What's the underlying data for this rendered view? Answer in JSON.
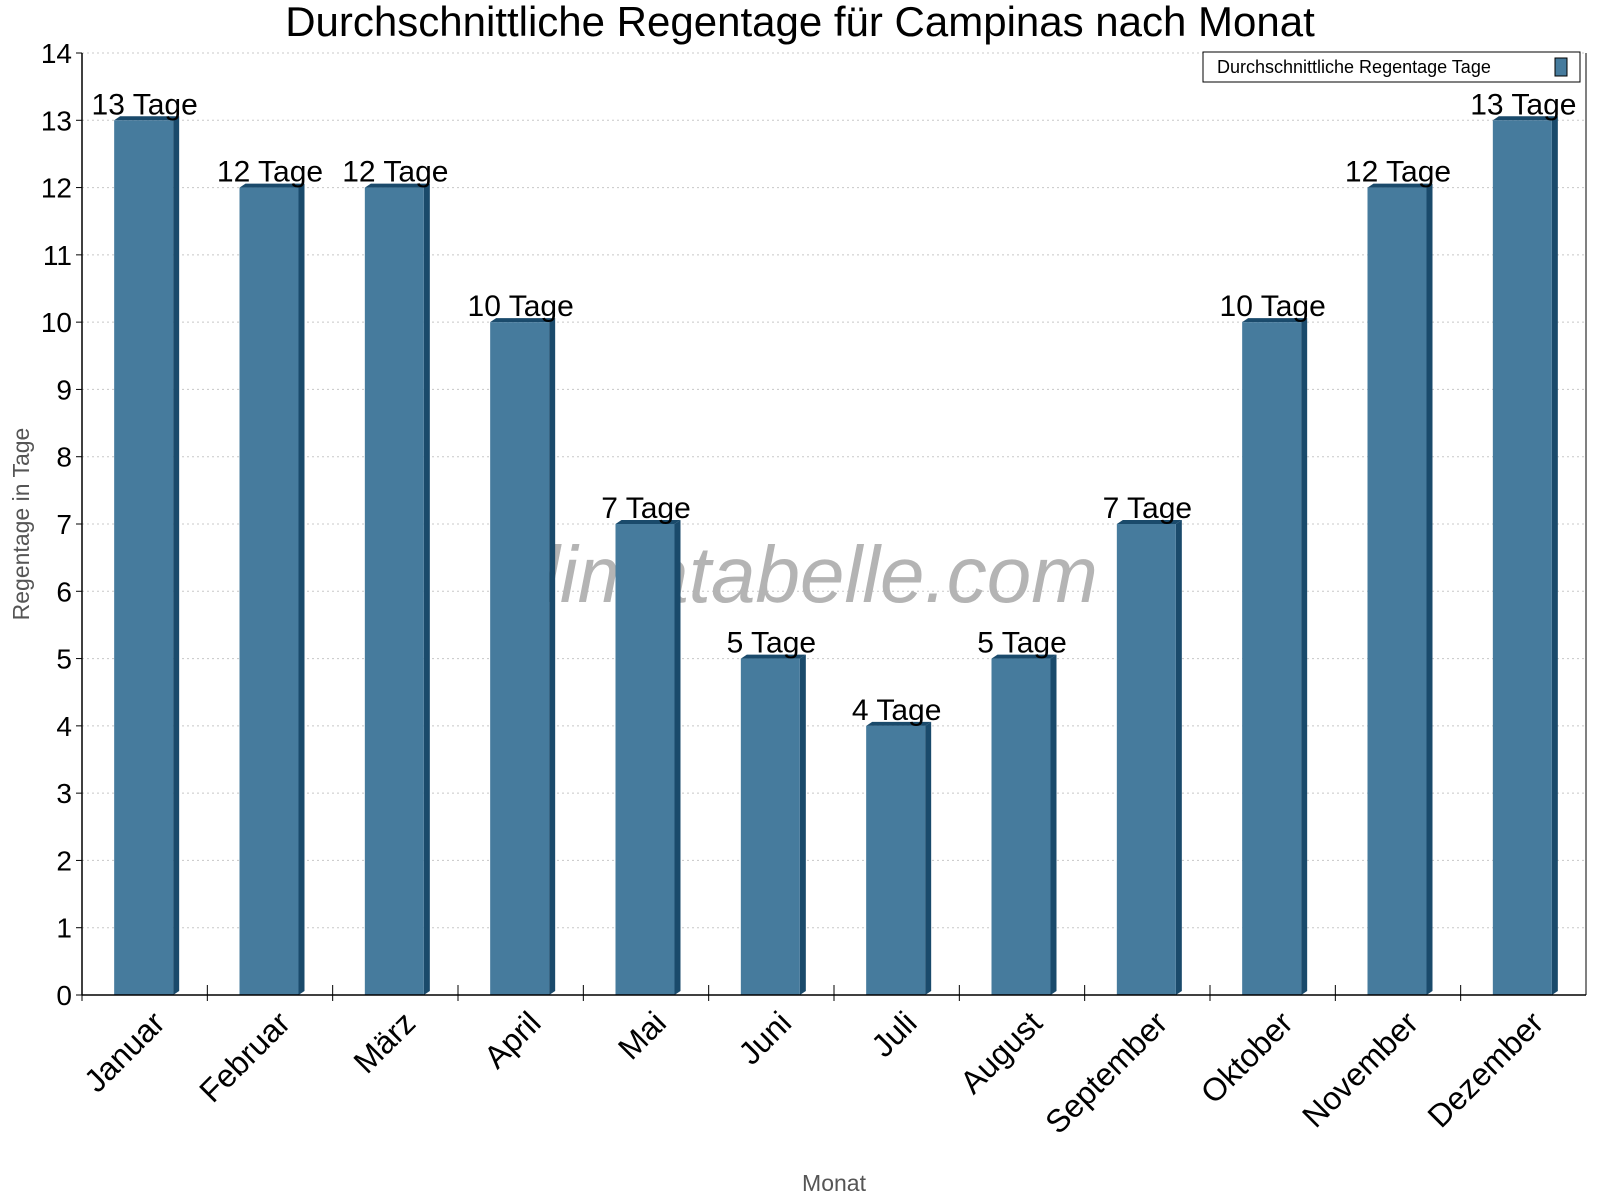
{
  "chart_data": {
    "type": "bar",
    "title": "Durchschnittliche Regentage für Campinas nach Monat",
    "xlabel": "Monat",
    "ylabel": "Regentage in Tage",
    "ylim": [
      0,
      14
    ],
    "yticks": [
      0,
      1,
      2,
      3,
      4,
      5,
      6,
      7,
      8,
      9,
      10,
      11,
      12,
      13,
      14
    ],
    "grid": true,
    "legend_position": "top-right",
    "categories": [
      "Januar",
      "Februar",
      "März",
      "April",
      "Mai",
      "Juni",
      "Juli",
      "August",
      "September",
      "Oktober",
      "November",
      "Dezember"
    ],
    "series": [
      {
        "name": "Durchschnittliche Regentage Tage",
        "color": "#467b9d",
        "side_color": "#1a4a6b",
        "values": [
          13,
          12,
          12,
          10,
          7,
          5,
          4,
          5,
          7,
          10,
          12,
          13
        ],
        "labels": [
          "13 Tage",
          "12 Tage",
          "12 Tage",
          "10 Tage",
          "7 Tage",
          "5 Tage",
          "4 Tage",
          "5 Tage",
          "7 Tage",
          "10 Tage",
          "12 Tage",
          "13 Tage"
        ]
      }
    ]
  },
  "watermark": "klimatabelle.com"
}
